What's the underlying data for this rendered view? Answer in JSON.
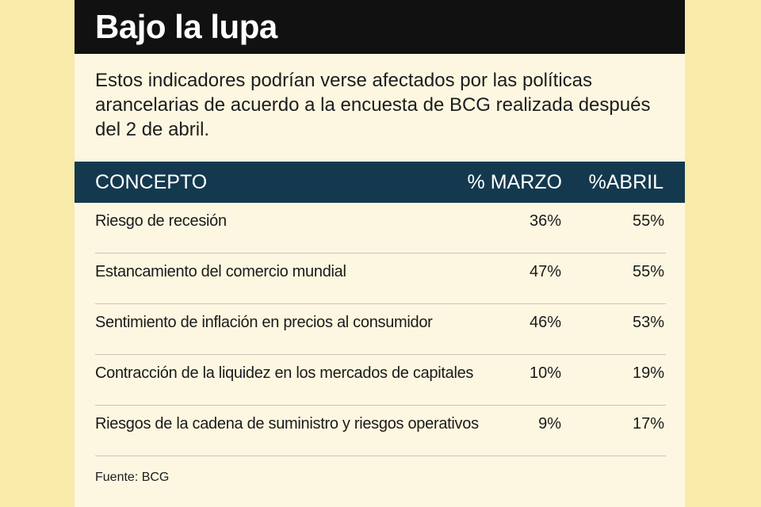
{
  "title": "Bajo la lupa",
  "subtitle": "Estos indicadores podrían verse afectados por las políticas arancelarias de acuerdo a la encuesta de BCG realizada después del 2 de abril.",
  "table": {
    "headers": {
      "concept": "CONCEPTO",
      "marzo": "% MARZO",
      "abril": "%ABRIL"
    },
    "rows": [
      {
        "concept": "Riesgo de recesión",
        "marzo": "36%",
        "abril": "55%"
      },
      {
        "concept": "Estancamiento del comercio mundial",
        "marzo": "47%",
        "abril": "55%"
      },
      {
        "concept": "Sentimiento de inflación en precios al consumidor",
        "marzo": "46%",
        "abril": "53%"
      },
      {
        "concept": "Contracción de la liquidez en los mercados de capitales",
        "marzo": "10%",
        "abril": "19%"
      },
      {
        "concept": "Riesgos de la cadena de suministro y riesgos operativos",
        "marzo": "9%",
        "abril": "17%"
      }
    ]
  },
  "source": "Fuente: BCG",
  "colors": {
    "page_bg": "#f8eaa9",
    "card_bg": "#fdf7e1",
    "title_bg": "#111111",
    "header_bg": "#14394f"
  }
}
